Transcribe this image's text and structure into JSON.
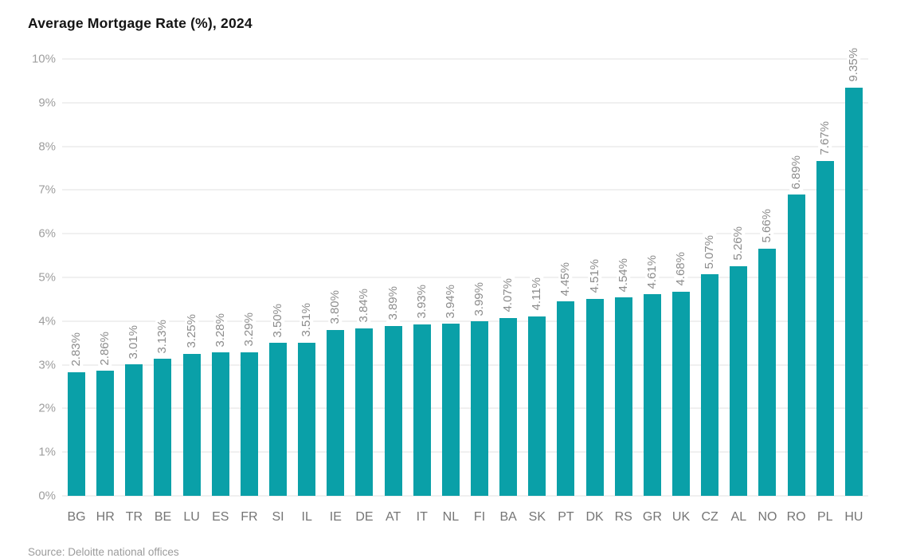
{
  "header": {
    "title": "Average Mortgage Rate (%), 2024"
  },
  "footer": {
    "source": "Source: Deloitte national offices"
  },
  "chart_data": {
    "type": "bar",
    "title": "Average Mortgage Rate (%), 2024",
    "categories": [
      "BG",
      "HR",
      "TR",
      "BE",
      "LU",
      "ES",
      "FR",
      "SI",
      "IL",
      "IE",
      "DE",
      "AT",
      "IT",
      "NL",
      "FI",
      "BA",
      "SK",
      "PT",
      "DK",
      "RS",
      "GR",
      "UK",
      "CZ",
      "AL",
      "NO",
      "RO",
      "PL",
      "HU"
    ],
    "values": [
      2.83,
      2.86,
      3.01,
      3.13,
      3.25,
      3.28,
      3.29,
      3.5,
      3.51,
      3.8,
      3.84,
      3.89,
      3.93,
      3.94,
      3.99,
      4.07,
      4.11,
      4.45,
      4.51,
      4.54,
      4.61,
      4.68,
      5.07,
      5.26,
      5.66,
      6.89,
      7.67,
      9.35
    ],
    "value_label_suffix": "%",
    "xlabel": "",
    "ylabel": "",
    "ylim": [
      0,
      10
    ],
    "ytick_values": [
      0,
      1,
      2,
      3,
      4,
      5,
      6,
      7,
      8,
      9,
      10
    ],
    "ytick_labels": [
      "0%",
      "1%",
      "2%",
      "3%",
      "4%",
      "5%",
      "6%",
      "7%",
      "8%",
      "9%",
      "10%"
    ],
    "grid": "horizontal",
    "legend": "none",
    "bar_color": "#0aa0a8",
    "source": "Source: Deloitte national offices"
  }
}
